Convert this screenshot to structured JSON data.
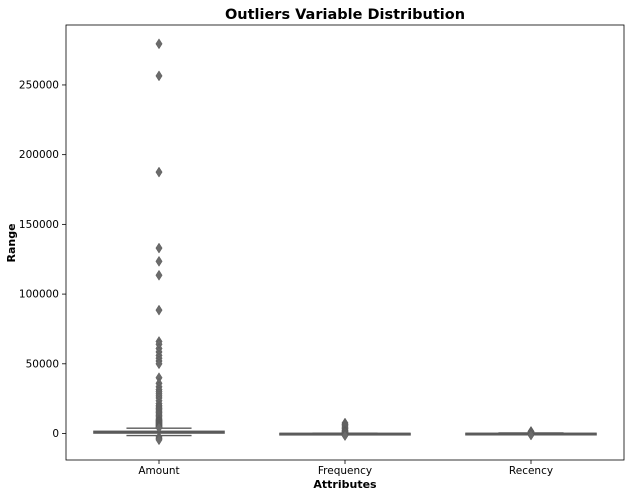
{
  "chart_data": {
    "type": "box",
    "title": "Outliers Variable Distribution",
    "xlabel": "Attributes",
    "ylabel": "Range",
    "categories": [
      "Amount",
      "Frequency",
      "Recency"
    ],
    "ylim": [
      -19000,
      293000
    ],
    "yticks": [
      0,
      50000,
      100000,
      150000,
      200000,
      250000
    ],
    "ytick_labels": [
      "0",
      "50000",
      "100000",
      "150000",
      "200000",
      "250000"
    ],
    "grid": false,
    "legend": "none",
    "box_color": "#808080",
    "edge_color": "#5a5a5a",
    "boxes": [
      {
        "name": "Amount",
        "whisker_low": -1500,
        "q1": 300,
        "median": 700,
        "q3": 1600,
        "whisker_high": 3800,
        "outliers": [
          279500,
          256500,
          187500,
          133000,
          123500,
          113500,
          88500,
          66000,
          64000,
          61000,
          58500,
          56000,
          54000,
          52000,
          50000,
          40000,
          36000,
          33500,
          31500,
          30000,
          28500,
          27000,
          25500,
          23500,
          21500,
          20000,
          19000,
          18000,
          17000,
          16000,
          15000,
          14000,
          13000,
          12000,
          11000,
          10000,
          9500,
          9000,
          8500,
          8000,
          7500,
          7000,
          6500,
          6000,
          5500,
          5000,
          4500,
          4200,
          -2500,
          -3500,
          -4500
        ]
      },
      {
        "name": "Frequency",
        "whisker_low": -200,
        "q1": 20,
        "median": 40,
        "q3": 90,
        "whisker_high": 250,
        "outliers": [
          7500,
          6500,
          5500,
          4500,
          3500,
          2500,
          1800,
          1200,
          800,
          500,
          -500,
          -1000,
          -1500
        ]
      },
      {
        "name": "Recency",
        "whisker_low": 0,
        "q1": 20,
        "median": 50,
        "q3": 140,
        "whisker_high": 370,
        "outliers": [
          1500,
          1000,
          600,
          -600,
          -1100
        ]
      }
    ]
  }
}
